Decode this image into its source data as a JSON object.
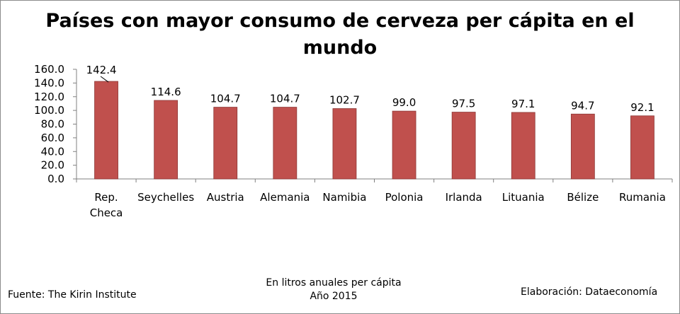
{
  "chart_data": {
    "type": "bar",
    "title_line1": "Países con mayor consumo de cerveza per cápita en el",
    "title_line2": "mundo",
    "categories": [
      "Rep. Checa",
      "Seychelles",
      "Austria",
      "Alemania",
      "Namibia",
      "Polonia",
      "Irlanda",
      "Lituania",
      "Bélize",
      "Rumania"
    ],
    "category_lines": [
      [
        "Rep.",
        "Checa"
      ],
      [
        "Seychelles"
      ],
      [
        "Austria"
      ],
      [
        "Alemania"
      ],
      [
        "Namibia"
      ],
      [
        "Polonia"
      ],
      [
        "Irlanda"
      ],
      [
        "Lituania"
      ],
      [
        "Bélize"
      ],
      [
        "Rumania"
      ]
    ],
    "values": [
      142.4,
      114.6,
      104.7,
      104.7,
      102.7,
      99.0,
      97.5,
      97.1,
      94.7,
      92.1
    ],
    "value_labels": [
      "142.4",
      "114.6",
      "104.7",
      "104.7",
      "102.7",
      "99.0",
      "97.5",
      "97.1",
      "94.7",
      "92.1"
    ],
    "ylim": [
      0,
      160
    ],
    "yticks": [
      0,
      20,
      40,
      60,
      80,
      100,
      120,
      140,
      160
    ],
    "ytick_labels": [
      "0.0",
      "20.0",
      "40.0",
      "60.0",
      "80.0",
      "100.0",
      "120.0",
      "140.0",
      "160.0"
    ],
    "grid": false,
    "legend": "none",
    "bar_color": "#c0504d",
    "bar_stroke_color": "#8c3836"
  },
  "footer": {
    "source": "Fuente:  The Kirin Institute",
    "note_line1": "En litros anuales per cápita",
    "note_line2": "Año 2015",
    "credit": "Elaboración: Dataeconomía"
  }
}
